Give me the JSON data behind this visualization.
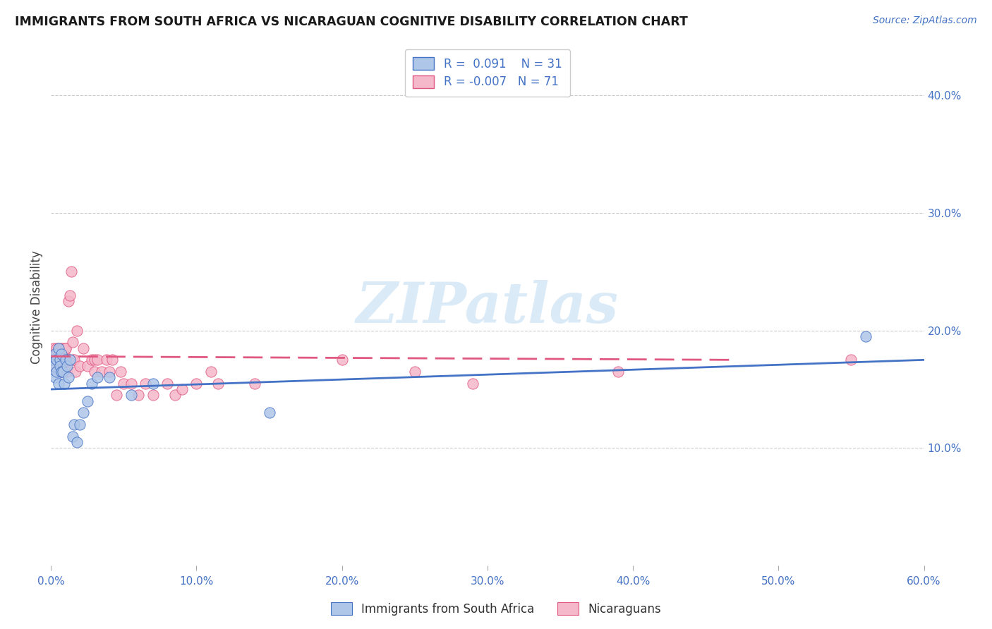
{
  "title": "IMMIGRANTS FROM SOUTH AFRICA VS NICARAGUAN COGNITIVE DISABILITY CORRELATION CHART",
  "source": "Source: ZipAtlas.com",
  "ylabel": "Cognitive Disability",
  "xlim": [
    0.0,
    0.6
  ],
  "ylim": [
    0.0,
    0.44
  ],
  "xticks": [
    0.0,
    0.1,
    0.2,
    0.3,
    0.4,
    0.5,
    0.6
  ],
  "yticks_right": [
    0.1,
    0.2,
    0.3,
    0.4
  ],
  "ytick_labels_right": [
    "10.0%",
    "20.0%",
    "30.0%",
    "40.0%"
  ],
  "xtick_labels": [
    "0.0%",
    "10.0%",
    "20.0%",
    "30.0%",
    "40.0%",
    "50.0%",
    "60.0%"
  ],
  "blue_R": 0.091,
  "blue_N": 31,
  "pink_R": -0.007,
  "pink_N": 71,
  "blue_color": "#aec6e8",
  "pink_color": "#f5b8cb",
  "blue_line_color": "#4472c4",
  "pink_line_color": "#e05880",
  "watermark_color": "#d0e4f5",
  "blue_scatter_x": [
    0.001,
    0.002,
    0.003,
    0.003,
    0.004,
    0.004,
    0.005,
    0.005,
    0.006,
    0.006,
    0.007,
    0.007,
    0.008,
    0.009,
    0.01,
    0.011,
    0.012,
    0.013,
    0.015,
    0.016,
    0.018,
    0.02,
    0.022,
    0.025,
    0.028,
    0.032,
    0.04,
    0.055,
    0.07,
    0.15,
    0.56
  ],
  "blue_scatter_y": [
    0.175,
    0.17,
    0.18,
    0.16,
    0.175,
    0.165,
    0.185,
    0.155,
    0.175,
    0.17,
    0.165,
    0.18,
    0.165,
    0.155,
    0.175,
    0.17,
    0.16,
    0.175,
    0.11,
    0.12,
    0.105,
    0.12,
    0.13,
    0.14,
    0.155,
    0.16,
    0.16,
    0.145,
    0.155,
    0.13,
    0.195
  ],
  "pink_scatter_x": [
    0.001,
    0.001,
    0.002,
    0.002,
    0.002,
    0.003,
    0.003,
    0.003,
    0.004,
    0.004,
    0.004,
    0.005,
    0.005,
    0.005,
    0.006,
    0.006,
    0.006,
    0.007,
    0.007,
    0.007,
    0.007,
    0.008,
    0.008,
    0.008,
    0.009,
    0.009,
    0.01,
    0.01,
    0.01,
    0.01,
    0.011,
    0.011,
    0.012,
    0.012,
    0.013,
    0.014,
    0.015,
    0.015,
    0.016,
    0.017,
    0.018,
    0.02,
    0.022,
    0.025,
    0.028,
    0.03,
    0.03,
    0.032,
    0.035,
    0.038,
    0.04,
    0.042,
    0.045,
    0.048,
    0.05,
    0.055,
    0.06,
    0.065,
    0.07,
    0.08,
    0.085,
    0.09,
    0.1,
    0.11,
    0.115,
    0.14,
    0.2,
    0.25,
    0.29,
    0.39,
    0.55
  ],
  "pink_scatter_y": [
    0.175,
    0.18,
    0.175,
    0.185,
    0.17,
    0.18,
    0.175,
    0.17,
    0.185,
    0.175,
    0.18,
    0.175,
    0.185,
    0.165,
    0.175,
    0.175,
    0.165,
    0.18,
    0.175,
    0.185,
    0.165,
    0.185,
    0.175,
    0.17,
    0.175,
    0.18,
    0.175,
    0.185,
    0.17,
    0.185,
    0.175,
    0.165,
    0.175,
    0.225,
    0.23,
    0.25,
    0.175,
    0.19,
    0.175,
    0.165,
    0.2,
    0.17,
    0.185,
    0.17,
    0.175,
    0.165,
    0.175,
    0.175,
    0.165,
    0.175,
    0.165,
    0.175,
    0.145,
    0.165,
    0.155,
    0.155,
    0.145,
    0.155,
    0.145,
    0.155,
    0.145,
    0.15,
    0.155,
    0.165,
    0.155,
    0.155,
    0.175,
    0.165,
    0.155,
    0.165,
    0.175
  ],
  "blue_line_x_start": 0.0,
  "blue_line_x_end": 0.6,
  "blue_line_y_start": 0.15,
  "blue_line_y_end": 0.175,
  "pink_line_x_start": 0.0,
  "pink_line_x_end": 0.47,
  "pink_line_y_start": 0.178,
  "pink_line_y_end": 0.175
}
